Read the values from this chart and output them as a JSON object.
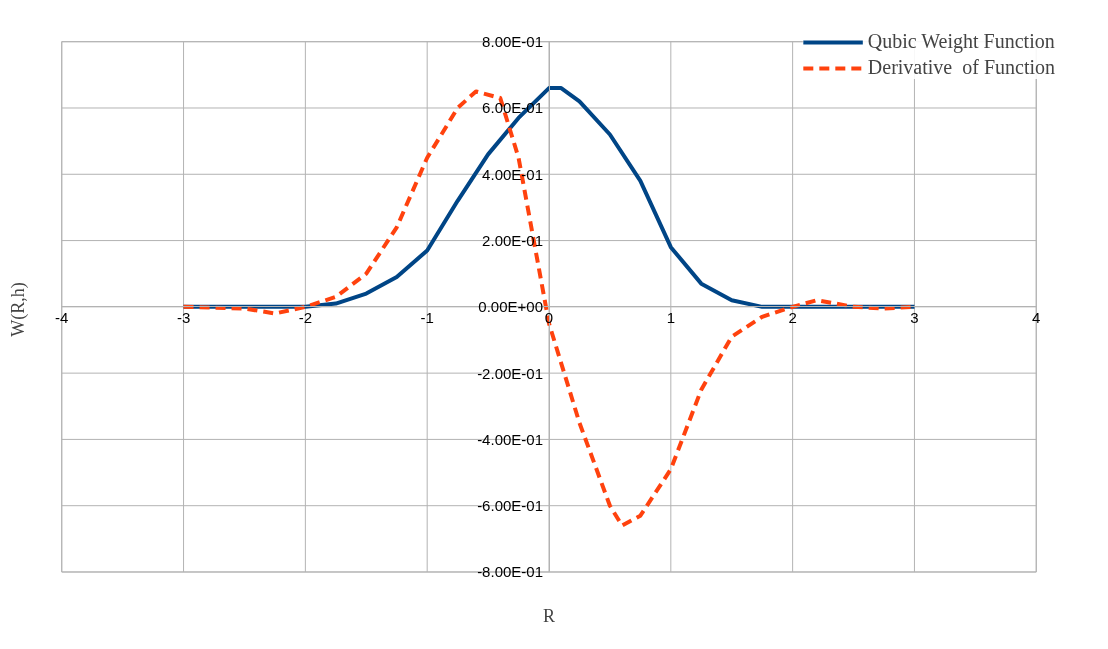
{
  "chart_data": {
    "type": "line",
    "xlabel": "R",
    "ylabel": "W(R,h)",
    "xlim": [
      -4,
      4
    ],
    "ylim": [
      -0.8,
      0.8
    ],
    "xticks": [
      -4,
      -3,
      -2,
      -1,
      0,
      1,
      2,
      3,
      4
    ],
    "yticks": [
      {
        "value": -0.8,
        "label": "-8.00E-01"
      },
      {
        "value": -0.6,
        "label": "-6.00E-01"
      },
      {
        "value": -0.4,
        "label": "-4.00E-01"
      },
      {
        "value": -0.2,
        "label": "-2.00E-01"
      },
      {
        "value": 0,
        "label": "0.00E+00"
      },
      {
        "value": 0.2,
        "label": "2.00E-01"
      },
      {
        "value": 0.4,
        "label": "4.00E-01"
      },
      {
        "value": 0.6,
        "label": "6.00E-01"
      },
      {
        "value": 0.8,
        "label": "8.00E-01"
      }
    ],
    "grid": true,
    "legend": "top right",
    "marker": "none",
    "series": [
      {
        "name": "Qubic Weight Function",
        "color": "#004586",
        "line_style": "solid",
        "x": [
          -3,
          -2.5,
          -2,
          -1.75,
          -1.5,
          -1.25,
          -1,
          -0.75,
          -0.5,
          -0.25,
          0,
          0.1,
          0.25,
          0.5,
          0.75,
          1,
          1.25,
          1.5,
          1.75,
          2,
          2.5,
          3
        ],
        "values": [
          0,
          0,
          0,
          0.01,
          0.04,
          0.09,
          0.17,
          0.32,
          0.46,
          0.57,
          0.66,
          0.66,
          0.62,
          0.52,
          0.38,
          0.18,
          0.07,
          0.02,
          0,
          0,
          0,
          0
        ]
      },
      {
        "name": "Derivative  of Function",
        "color": "#ff420e",
        "line_style": "dashed",
        "x": [
          -3,
          -2.5,
          -2.25,
          -2,
          -1.75,
          -1.5,
          -1.25,
          -1,
          -0.75,
          -0.6,
          -0.4,
          -0.25,
          -0.1,
          0,
          0.25,
          0.5,
          0.6,
          0.75,
          1,
          1.25,
          1.5,
          1.75,
          2,
          2.2,
          2.5,
          2.75,
          3
        ],
        "values": [
          0,
          -0.005,
          -0.02,
          0,
          0.03,
          0.1,
          0.24,
          0.45,
          0.6,
          0.65,
          0.63,
          0.45,
          0.15,
          -0.05,
          -0.35,
          -0.6,
          -0.66,
          -0.63,
          -0.49,
          -0.25,
          -0.09,
          -0.03,
          0,
          0.02,
          0,
          -0.005,
          0
        ]
      }
    ]
  }
}
